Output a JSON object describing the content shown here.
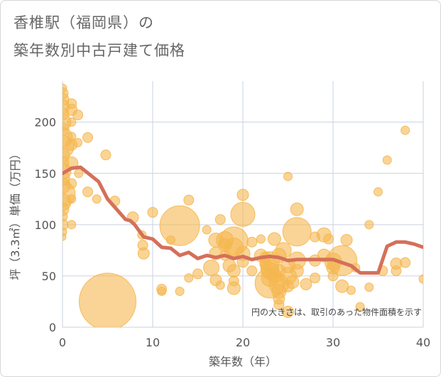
{
  "title_lines": [
    "香椎駅（福岡県）の",
    "築年数別中古戸建て価格"
  ],
  "colors": {
    "bubble": "#f5b750",
    "line": "#d4705a",
    "grid": "#c9d2e0",
    "plot_bg": "#ffffff"
  },
  "chart_data": {
    "type": "scatter",
    "xlabel": "築年数（年）",
    "ylabel": "坪（3.3㎡）単価（万円）",
    "xlim": [
      0,
      40
    ],
    "ylim": [
      0,
      240
    ],
    "x_ticks": [
      0,
      10,
      20,
      30,
      40
    ],
    "y_ticks": [
      0,
      50,
      100,
      150,
      200
    ],
    "grid": true,
    "note": "円の大きさは、取引のあった物件面積を示す",
    "bubbles": [
      [
        0,
        233,
        6
      ],
      [
        0,
        228,
        8
      ],
      [
        0,
        222,
        9
      ],
      [
        0,
        215,
        10
      ],
      [
        0,
        208,
        9
      ],
      [
        0,
        200,
        12
      ],
      [
        0,
        193,
        9
      ],
      [
        0,
        185,
        14
      ],
      [
        0,
        176,
        16
      ],
      [
        0,
        168,
        10
      ],
      [
        0,
        160,
        9
      ],
      [
        0,
        152,
        12
      ],
      [
        0,
        145,
        10
      ],
      [
        0,
        138,
        11
      ],
      [
        0,
        130,
        18
      ],
      [
        0,
        122,
        12
      ],
      [
        0,
        115,
        9
      ],
      [
        0,
        108,
        7
      ],
      [
        0,
        100,
        8
      ],
      [
        0,
        93,
        6
      ],
      [
        0,
        88,
        5
      ],
      [
        1,
        218,
        7
      ],
      [
        1,
        212,
        8
      ],
      [
        1,
        200,
        6
      ],
      [
        1,
        186,
        6
      ],
      [
        1,
        178,
        8
      ],
      [
        1,
        160,
        9
      ],
      [
        1,
        140,
        7
      ],
      [
        1,
        125,
        6
      ],
      [
        1,
        100,
        6
      ],
      [
        1.7,
        207,
        7
      ],
      [
        1.7,
        180,
        6
      ],
      [
        1.8,
        150,
        6
      ],
      [
        2.8,
        185,
        7
      ],
      [
        2.8,
        132,
        7
      ],
      [
        3.8,
        125,
        6
      ],
      [
        4.8,
        168,
        7
      ],
      [
        5,
        25,
        40
      ],
      [
        5.8,
        123,
        7
      ],
      [
        7.8,
        107,
        8
      ],
      [
        8.8,
        90,
        6
      ],
      [
        8.9,
        80,
        7
      ],
      [
        9,
        72,
        8
      ],
      [
        10,
        112,
        7
      ],
      [
        11,
        37,
        7
      ],
      [
        11,
        35,
        6
      ],
      [
        12,
        85,
        6
      ],
      [
        13,
        99,
        28
      ],
      [
        13,
        35,
        6
      ],
      [
        14,
        124,
        7
      ],
      [
        14,
        48,
        6
      ],
      [
        15,
        52,
        7
      ],
      [
        16,
        95,
        6
      ],
      [
        16.5,
        58,
        11
      ],
      [
        17,
        46,
        8
      ],
      [
        17,
        85,
        10
      ],
      [
        17,
        72,
        9
      ],
      [
        17.5,
        105,
        7
      ],
      [
        17.5,
        41,
        6
      ],
      [
        18,
        85,
        12
      ],
      [
        18,
        80,
        9
      ],
      [
        18,
        70,
        7
      ],
      [
        18.5,
        60,
        9
      ],
      [
        19,
        84,
        20
      ],
      [
        19,
        78,
        13
      ],
      [
        19,
        55,
        9
      ],
      [
        19,
        45,
        7
      ],
      [
        19,
        38,
        9
      ],
      [
        20,
        110,
        17
      ],
      [
        20,
        129,
        8
      ],
      [
        20,
        72,
        10
      ],
      [
        20,
        64,
        8
      ],
      [
        21,
        83,
        7
      ],
      [
        21,
        55,
        7
      ],
      [
        22,
        86,
        6
      ],
      [
        22,
        70,
        9
      ],
      [
        22.5,
        68,
        8
      ],
      [
        22.5,
        62,
        8
      ],
      [
        23,
        64,
        14
      ],
      [
        23,
        57,
        13
      ],
      [
        23,
        55,
        12
      ],
      [
        23,
        48,
        12
      ],
      [
        23,
        43,
        21
      ],
      [
        23.5,
        86,
        9
      ],
      [
        23.5,
        50,
        10
      ],
      [
        24,
        70,
        10
      ],
      [
        24,
        55,
        9
      ],
      [
        24,
        42,
        14
      ],
      [
        24,
        35,
        10
      ],
      [
        24,
        28,
        8
      ],
      [
        24,
        22,
        7
      ],
      [
        24.5,
        75,
        11
      ],
      [
        25,
        15,
        8
      ],
      [
        25,
        147,
        6
      ],
      [
        25,
        60,
        10
      ],
      [
        25,
        50,
        12
      ],
      [
        25,
        40,
        8
      ],
      [
        25.5,
        44,
        9
      ],
      [
        26,
        93,
        20
      ],
      [
        26,
        115,
        9
      ],
      [
        26,
        65,
        12
      ],
      [
        26,
        55,
        9
      ],
      [
        27,
        42,
        8
      ],
      [
        28,
        88,
        7
      ],
      [
        28,
        65,
        8
      ],
      [
        28,
        48,
        7
      ],
      [
        29,
        90,
        10
      ],
      [
        29,
        70,
        9
      ],
      [
        29.5,
        86,
        7
      ],
      [
        30,
        64,
        12
      ],
      [
        30,
        58,
        9
      ],
      [
        30,
        50,
        7
      ],
      [
        31,
        65,
        21
      ],
      [
        31,
        40,
        9
      ],
      [
        31.5,
        85,
        8
      ],
      [
        32,
        36,
        6
      ],
      [
        32.5,
        58,
        6
      ],
      [
        33,
        20,
        6
      ],
      [
        34,
        100,
        6
      ],
      [
        34,
        39,
        6
      ],
      [
        35,
        132,
        6
      ],
      [
        35.5,
        55,
        7
      ],
      [
        36,
        163,
        6
      ],
      [
        37,
        55,
        7
      ],
      [
        37,
        62,
        8
      ],
      [
        38,
        192,
        6
      ],
      [
        38,
        63,
        7
      ],
      [
        40,
        47,
        6
      ]
    ],
    "trend_line": {
      "x": [
        0,
        1,
        2,
        3,
        4,
        5,
        6,
        7,
        7.5,
        8,
        9,
        10,
        11,
        12,
        13,
        14,
        15,
        16,
        17,
        18,
        19,
        20,
        21,
        22,
        23,
        24,
        25,
        26,
        27,
        28,
        29,
        30,
        31,
        32,
        33,
        34,
        35,
        36,
        37,
        38,
        39,
        40
      ],
      "y": [
        150,
        155,
        156,
        149,
        142,
        125,
        115,
        105,
        104,
        100,
        88,
        86,
        78,
        77,
        70,
        73,
        67,
        70,
        68,
        70,
        67,
        69,
        66,
        68,
        69,
        68,
        65,
        66,
        66,
        66,
        66,
        66,
        63,
        60,
        53,
        53,
        53,
        79,
        83,
        83,
        81,
        78
      ]
    }
  }
}
